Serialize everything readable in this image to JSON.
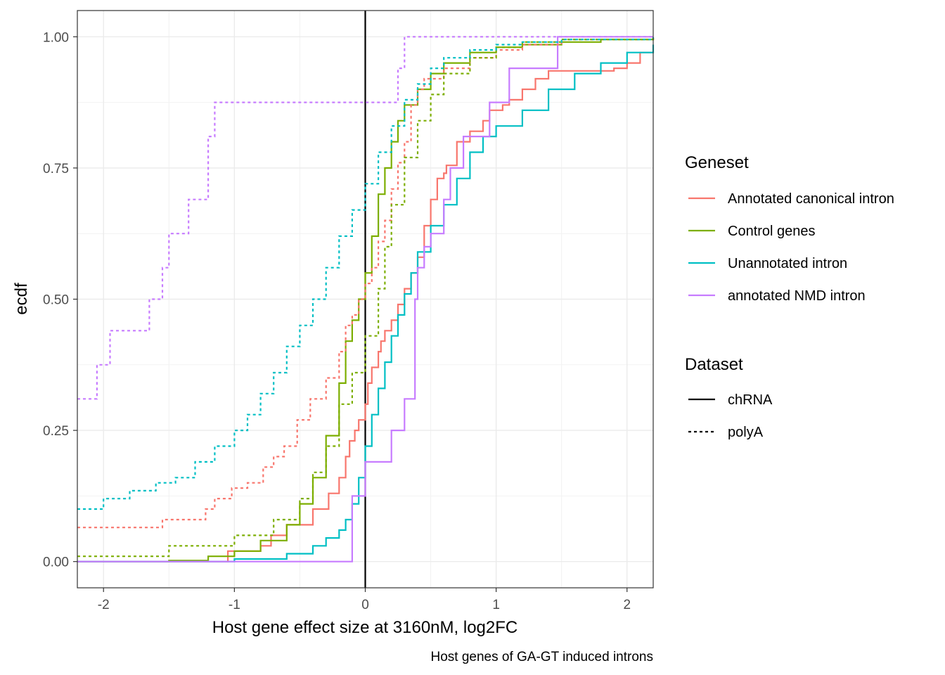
{
  "chart_data": {
    "type": "line",
    "title": "",
    "xlabel": "Host gene effect size at 3160nM, log2FC",
    "ylabel": "ecdf",
    "caption": "Host genes of GA-GT induced introns",
    "xlim": [
      -2.2,
      2.2
    ],
    "ylim": [
      -0.05,
      1.05
    ],
    "xticks": [
      -2,
      -1,
      0,
      1,
      2
    ],
    "xtick_labels": [
      "-2",
      "-1",
      "0",
      "1",
      "2"
    ],
    "yticks": [
      0,
      0.25,
      0.5,
      0.75,
      1
    ],
    "ytick_labels": [
      "0.00",
      "0.25",
      "0.50",
      "0.75",
      "1.00"
    ],
    "grid": true,
    "vline_x": 0,
    "legend": {
      "geneset_title": "Geneset",
      "dataset_title": "Dataset",
      "geneset": [
        {
          "label": "Annotated canonical intron",
          "color": "#F8766D"
        },
        {
          "label": "Control genes",
          "color": "#7CAE00"
        },
        {
          "label": "Unannotated intron",
          "color": "#00BFC4"
        },
        {
          "label": "annotated NMD intron",
          "color": "#C77CFF"
        }
      ],
      "dataset": [
        {
          "label": "chRNA",
          "linetype": "solid"
        },
        {
          "label": "polyA",
          "linetype": "dashed"
        }
      ],
      "placement": "right"
    },
    "series": [
      {
        "name": "Annotated canonical intron",
        "dataset": "chRNA",
        "color": "#F8766D",
        "linetype": "solid",
        "x": [
          -2.2,
          -1.05,
          -0.8,
          -0.72,
          -0.6,
          -0.4,
          -0.28,
          -0.2,
          -0.15,
          -0.12,
          -0.08,
          -0.05,
          0.0,
          0.02,
          0.05,
          0.1,
          0.12,
          0.15,
          0.2,
          0.25,
          0.3,
          0.35,
          0.4,
          0.45,
          0.5,
          0.55,
          0.6,
          0.62,
          0.65,
          0.7,
          0.8,
          0.9,
          0.95,
          1.05,
          1.1,
          1.2,
          1.3,
          1.4,
          1.6,
          1.8,
          1.9,
          2.0,
          2.1,
          2.2
        ],
        "y": [
          0.0,
          0.02,
          0.03,
          0.05,
          0.07,
          0.1,
          0.13,
          0.16,
          0.2,
          0.23,
          0.25,
          0.27,
          0.3,
          0.34,
          0.37,
          0.4,
          0.42,
          0.44,
          0.46,
          0.49,
          0.52,
          0.55,
          0.58,
          0.64,
          0.69,
          0.73,
          0.74,
          0.755,
          0.755,
          0.8,
          0.82,
          0.84,
          0.86,
          0.87,
          0.88,
          0.9,
          0.92,
          0.935,
          0.935,
          0.935,
          0.94,
          0.95,
          0.97,
          0.97
        ]
      },
      {
        "name": "Control genes",
        "dataset": "chRNA",
        "color": "#7CAE00",
        "linetype": "solid",
        "x": [
          -2.2,
          -1.5,
          -1.2,
          -1.0,
          -0.8,
          -0.6,
          -0.5,
          -0.4,
          -0.3,
          -0.2,
          -0.15,
          -0.1,
          -0.05,
          0.0,
          0.05,
          0.1,
          0.15,
          0.2,
          0.25,
          0.3,
          0.4,
          0.5,
          0.6,
          0.8,
          1.0,
          1.2,
          1.5,
          1.8,
          2.2
        ],
        "y": [
          0.0,
          0.002,
          0.01,
          0.02,
          0.04,
          0.07,
          0.11,
          0.16,
          0.24,
          0.34,
          0.42,
          0.46,
          0.5,
          0.55,
          0.62,
          0.7,
          0.75,
          0.8,
          0.84,
          0.87,
          0.9,
          0.93,
          0.95,
          0.97,
          0.98,
          0.985,
          0.99,
          0.995,
          0.998
        ]
      },
      {
        "name": "Unannotated intron",
        "dataset": "chRNA",
        "color": "#00BFC4",
        "linetype": "solid",
        "x": [
          -2.2,
          -1.0,
          -0.6,
          -0.4,
          -0.3,
          -0.2,
          -0.15,
          -0.1,
          -0.05,
          0.0,
          0.05,
          0.1,
          0.15,
          0.2,
          0.25,
          0.3,
          0.35,
          0.4,
          0.5,
          0.6,
          0.7,
          0.8,
          0.9,
          1.0,
          1.2,
          1.4,
          1.6,
          1.8,
          2.0,
          2.2
        ],
        "y": [
          0.0,
          0.005,
          0.015,
          0.03,
          0.045,
          0.06,
          0.08,
          0.11,
          0.16,
          0.22,
          0.28,
          0.33,
          0.38,
          0.43,
          0.47,
          0.51,
          0.55,
          0.59,
          0.64,
          0.68,
          0.73,
          0.78,
          0.81,
          0.83,
          0.86,
          0.9,
          0.93,
          0.95,
          0.97,
          0.985
        ]
      },
      {
        "name": "annotated NMD intron",
        "dataset": "chRNA",
        "color": "#C77CFF",
        "linetype": "solid",
        "x": [
          -2.2,
          -0.18,
          -0.1,
          0.0,
          0.1,
          0.2,
          0.3,
          0.35,
          0.38,
          0.4,
          0.45,
          0.5,
          0.55,
          0.6,
          0.65,
          0.75,
          0.8,
          0.95,
          1.0,
          1.1,
          1.47,
          2.2
        ],
        "y": [
          0.0,
          0.0,
          0.125,
          0.19,
          0.19,
          0.25,
          0.31,
          0.31,
          0.5,
          0.56,
          0.6,
          0.625,
          0.625,
          0.69,
          0.75,
          0.81,
          0.81,
          0.875,
          0.875,
          0.94,
          1.0,
          1.0
        ]
      },
      {
        "name": "Annotated canonical intron",
        "dataset": "polyA",
        "color": "#F8766D",
        "linetype": "dashed",
        "x": [
          -2.2,
          -1.55,
          -1.22,
          -1.15,
          -1.02,
          -0.9,
          -0.78,
          -0.7,
          -0.62,
          -0.52,
          -0.42,
          -0.3,
          -0.2,
          -0.15,
          -0.1,
          -0.05,
          0.0,
          0.05,
          0.1,
          0.15,
          0.2,
          0.25,
          0.3,
          0.35,
          0.4,
          0.45,
          0.6,
          0.8,
          1.0,
          1.2,
          1.5,
          2.2
        ],
        "y": [
          0.065,
          0.08,
          0.1,
          0.12,
          0.14,
          0.15,
          0.18,
          0.2,
          0.22,
          0.27,
          0.31,
          0.35,
          0.4,
          0.45,
          0.47,
          0.5,
          0.53,
          0.56,
          0.61,
          0.65,
          0.71,
          0.76,
          0.8,
          0.87,
          0.9,
          0.92,
          0.94,
          0.96,
          0.975,
          0.985,
          0.995,
          1.0
        ]
      },
      {
        "name": "Control genes",
        "dataset": "polyA",
        "color": "#7CAE00",
        "linetype": "dashed",
        "x": [
          -2.2,
          -1.5,
          -1.0,
          -0.7,
          -0.5,
          -0.4,
          -0.3,
          -0.2,
          -0.1,
          0.0,
          0.1,
          0.15,
          0.2,
          0.3,
          0.4,
          0.5,
          0.6,
          0.8,
          1.0,
          1.2,
          1.5,
          2.2
        ],
        "y": [
          0.01,
          0.03,
          0.05,
          0.08,
          0.12,
          0.17,
          0.22,
          0.3,
          0.36,
          0.43,
          0.52,
          0.6,
          0.68,
          0.77,
          0.84,
          0.89,
          0.93,
          0.96,
          0.98,
          0.99,
          0.995,
          0.999
        ]
      },
      {
        "name": "Unannotated intron",
        "dataset": "polyA",
        "color": "#00BFC4",
        "linetype": "dashed",
        "x": [
          -2.2,
          -2.0,
          -1.8,
          -1.6,
          -1.45,
          -1.3,
          -1.15,
          -1.0,
          -0.9,
          -0.8,
          -0.7,
          -0.6,
          -0.5,
          -0.4,
          -0.3,
          -0.2,
          -0.1,
          0.0,
          0.1,
          0.2,
          0.3,
          0.4,
          0.5,
          0.6,
          0.8,
          1.0,
          1.2,
          1.5,
          2.2
        ],
        "y": [
          0.1,
          0.12,
          0.135,
          0.15,
          0.16,
          0.19,
          0.22,
          0.25,
          0.28,
          0.32,
          0.36,
          0.41,
          0.45,
          0.5,
          0.56,
          0.62,
          0.67,
          0.72,
          0.78,
          0.83,
          0.88,
          0.91,
          0.94,
          0.96,
          0.975,
          0.985,
          0.99,
          0.995,
          0.999
        ]
      },
      {
        "name": "annotated NMD intron",
        "dataset": "polyA",
        "color": "#C77CFF",
        "linetype": "dashed",
        "x": [
          -2.2,
          -2.05,
          -2.0,
          -1.95,
          -1.65,
          -1.6,
          -1.55,
          -1.5,
          -1.35,
          -1.3,
          -1.2,
          -1.15,
          0.25,
          0.3,
          2.2
        ],
        "y": [
          0.31,
          0.375,
          0.375,
          0.44,
          0.5,
          0.5,
          0.56,
          0.625,
          0.69,
          0.69,
          0.81,
          0.875,
          0.94,
          1.0,
          1.0
        ]
      }
    ]
  }
}
